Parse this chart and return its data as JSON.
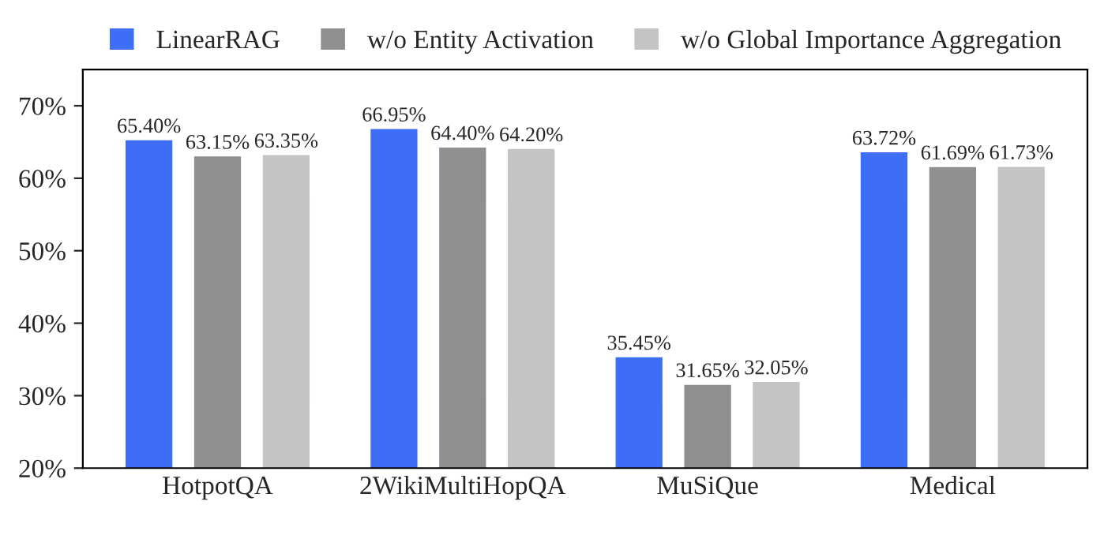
{
  "chart_data": {
    "type": "bar",
    "categories": [
      "HotpotQA",
      "2WikiMultiHopQA",
      "MuSiQue",
      "Medical"
    ],
    "series": [
      {
        "name": "LinearRAG",
        "color": "#3d6ef5",
        "values": [
          65.4,
          66.95,
          35.45,
          63.72
        ],
        "value_labels": [
          "65.40%",
          "66.95%",
          "35.45%",
          "63.72%"
        ]
      },
      {
        "name": "w/o Entity Activation",
        "color": "#8f8f8f",
        "values": [
          63.15,
          64.4,
          31.65,
          61.69
        ],
        "value_labels": [
          "63.15%",
          "64.40%",
          "31.65%",
          "61.69%"
        ]
      },
      {
        "name": "w/o Global Importance Aggregation",
        "color": "#c4c4c4",
        "values": [
          63.35,
          64.2,
          32.05,
          61.73
        ],
        "value_labels": [
          "63.35%",
          "64.20%",
          "32.05%",
          "61.73%"
        ]
      }
    ],
    "ylim": [
      20,
      75
    ],
    "yticks": [
      {
        "value": 20,
        "label": "20%"
      },
      {
        "value": 30,
        "label": "30%"
      },
      {
        "value": 40,
        "label": "40%"
      },
      {
        "value": 50,
        "label": "50%"
      },
      {
        "value": 60,
        "label": "60%"
      },
      {
        "value": 70,
        "label": "70%"
      }
    ],
    "legend": "top",
    "grid": false
  }
}
